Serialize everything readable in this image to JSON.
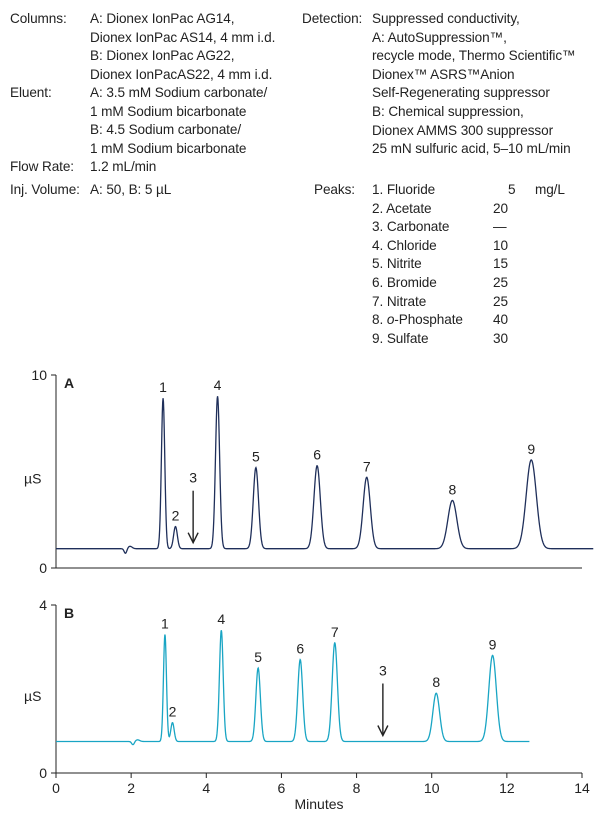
{
  "conditions": {
    "columns_label": "Columns:",
    "columns_lines": [
      "A: Dionex IonPac AG14,",
      "Dionex IonPac AS14, 4 mm i.d.",
      "B: Dionex IonPac AG22,",
      "Dionex IonPacAS22, 4 mm i.d."
    ],
    "eluent_label": "Eluent:",
    "eluent_lines": [
      "A: 3.5 mM Sodium carbonate/",
      "1 mM Sodium bicarbonate",
      "B: 4.5 Sodium carbonate/",
      "1 mM Sodium bicarbonate"
    ],
    "flow_label": "Flow Rate:",
    "flow_value": "1.2 mL/min",
    "inj_label": "Inj. Volume:",
    "inj_value": "A: 50, B: 5 µL",
    "detection_label": "Detection:",
    "detection_lines": [
      "Suppressed conductivity,",
      "A: AutoSuppression™,",
      "recycle mode, Thermo Scientific™",
      "Dionex™ ASRS™Anion",
      "Self-Regenerating suppressor",
      "B: Chemical suppression,",
      "Dionex AMMS 300 suppressor",
      "25 mN sulfuric acid, 5–10 mL/min"
    ],
    "peaks_label": "Peaks:",
    "peaks_unit": "mg/L",
    "peaks": [
      {
        "name": "1. Fluoride",
        "conc": "5"
      },
      {
        "name": "2. Acetate",
        "conc": "20"
      },
      {
        "name": "3. Carbonate",
        "conc": "—"
      },
      {
        "name": "4. Chloride",
        "conc": "10"
      },
      {
        "name": "5. Nitrite",
        "conc": "15"
      },
      {
        "name": "6. Bromide",
        "conc": "25"
      },
      {
        "name": "7. Nitrate",
        "conc": "25"
      },
      {
        "name": "8. o-Phosphate",
        "conc": "40"
      },
      {
        "name": "9. Sulfate",
        "conc": "30"
      }
    ]
  },
  "chart_data": [
    {
      "type": "line",
      "panel_label": "A",
      "color": "#1f2f5a",
      "xlim": [
        0,
        14
      ],
      "ylim": [
        0,
        10
      ],
      "yticks": [
        "0",
        "10"
      ],
      "ylabel": "µS",
      "x_end": 14.3,
      "baseline": 1.0,
      "dip": {
        "x": 1.85,
        "depth": 0.25
      },
      "peaks": [
        {
          "label": "1",
          "x": 2.85,
          "height": 7.8,
          "width": 0.045
        },
        {
          "label": "2",
          "x": 3.18,
          "height": 1.15,
          "width": 0.05
        },
        {
          "label": "4",
          "x": 4.3,
          "height": 7.9,
          "width": 0.055
        },
        {
          "label": "5",
          "x": 5.32,
          "height": 4.2,
          "width": 0.07
        },
        {
          "label": "6",
          "x": 6.95,
          "height": 4.3,
          "width": 0.085
        },
        {
          "label": "7",
          "x": 8.27,
          "height": 3.7,
          "width": 0.095
        },
        {
          "label": "8",
          "x": 10.55,
          "height": 2.5,
          "width": 0.12
        },
        {
          "label": "9",
          "x": 12.65,
          "height": 4.6,
          "width": 0.135
        }
      ],
      "arrow_annotation": {
        "label": "3",
        "x": 3.65
      }
    },
    {
      "type": "line",
      "panel_label": "B",
      "color": "#19a5c4",
      "xlim": [
        0,
        14
      ],
      "ylim": [
        0,
        4
      ],
      "yticks": [
        "0",
        "4"
      ],
      "ylabel": "µS",
      "x_end": 12.6,
      "baseline": 0.75,
      "dip": {
        "x": 2.05,
        "depth": 0.08
      },
      "peaks": [
        {
          "label": "1",
          "x": 2.9,
          "height": 2.55,
          "width": 0.04
        },
        {
          "label": "2",
          "x": 3.1,
          "height": 0.45,
          "width": 0.045
        },
        {
          "label": "4",
          "x": 4.4,
          "height": 2.65,
          "width": 0.05
        },
        {
          "label": "5",
          "x": 5.38,
          "height": 1.75,
          "width": 0.06
        },
        {
          "label": "6",
          "x": 6.5,
          "height": 1.95,
          "width": 0.065
        },
        {
          "label": "7",
          "x": 7.42,
          "height": 2.35,
          "width": 0.07
        },
        {
          "label": "8",
          "x": 10.12,
          "height": 1.15,
          "width": 0.09
        },
        {
          "label": "9",
          "x": 11.62,
          "height": 2.05,
          "width": 0.1
        }
      ],
      "arrow_annotation": {
        "label": "3",
        "x": 8.7
      },
      "xticks": [
        "0",
        "2",
        "4",
        "6",
        "8",
        "10",
        "12",
        "14"
      ],
      "xlabel": "Minutes"
    }
  ]
}
